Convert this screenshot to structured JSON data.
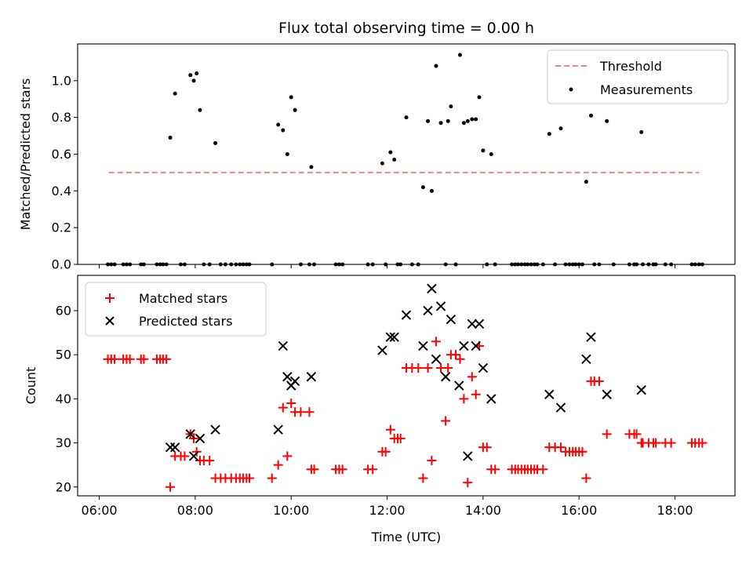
{
  "chart_data": [
    {
      "type": "scatter",
      "title": "Flux total observing time = 0.00 h",
      "xlabel": "",
      "ylabel": "Matched/Predicted stars",
      "xlim": [
        5.55,
        19.25
      ],
      "ylim": [
        0,
        1.2
      ],
      "yticks": [
        0.0,
        0.2,
        0.4,
        0.6,
        0.8,
        1.0
      ],
      "ytick_labels": [
        "0.0",
        "0.2",
        "0.4",
        "0.6",
        "0.8",
        "1.0"
      ],
      "xticks": [
        6,
        8,
        10,
        12,
        14,
        16,
        18
      ],
      "legend_position": "top-right",
      "threshold": {
        "name": "Threshold",
        "y": 0.5,
        "x": [
          6.2,
          18.5
        ],
        "color": "#ff7f7f",
        "style": "dashed"
      },
      "series": [
        {
          "name": "Measurements",
          "color": "#000000",
          "marker": "dot",
          "points": [
            [
              6.18,
              0
            ],
            [
              6.25,
              0
            ],
            [
              6.32,
              0
            ],
            [
              6.5,
              0
            ],
            [
              6.57,
              0
            ],
            [
              6.64,
              0
            ],
            [
              6.87,
              0
            ],
            [
              6.93,
              0
            ],
            [
              7.2,
              0
            ],
            [
              7.27,
              0
            ],
            [
              7.33,
              0
            ],
            [
              7.4,
              0
            ],
            [
              7.48,
              0.69
            ],
            [
              7.58,
              0.93
            ],
            [
              7.7,
              0
            ],
            [
              7.78,
              0
            ],
            [
              7.9,
              1.03
            ],
            [
              7.97,
              1.0
            ],
            [
              8.03,
              1.04
            ],
            [
              8.1,
              0.84
            ],
            [
              8.18,
              0
            ],
            [
              8.3,
              0
            ],
            [
              8.42,
              0.66
            ],
            [
              8.53,
              0
            ],
            [
              8.63,
              0
            ],
            [
              8.75,
              0
            ],
            [
              8.85,
              0
            ],
            [
              8.93,
              0
            ],
            [
              9.0,
              0
            ],
            [
              9.07,
              0
            ],
            [
              9.13,
              0
            ],
            [
              9.6,
              0
            ],
            [
              9.73,
              0.76
            ],
            [
              9.83,
              0.73
            ],
            [
              9.92,
              0.6
            ],
            [
              10.0,
              0.91
            ],
            [
              10.08,
              0.84
            ],
            [
              10.2,
              0
            ],
            [
              10.38,
              0
            ],
            [
              10.42,
              0.53
            ],
            [
              10.48,
              0
            ],
            [
              10.93,
              0
            ],
            [
              11.0,
              0
            ],
            [
              11.07,
              0
            ],
            [
              11.6,
              0
            ],
            [
              11.7,
              0
            ],
            [
              11.9,
              0.55
            ],
            [
              11.97,
              0
            ],
            [
              12.07,
              0.61
            ],
            [
              12.15,
              0.57
            ],
            [
              12.22,
              0
            ],
            [
              12.28,
              0
            ],
            [
              12.4,
              0.8
            ],
            [
              12.52,
              0
            ],
            [
              12.65,
              0
            ],
            [
              12.75,
              0.42
            ],
            [
              12.85,
              0.78
            ],
            [
              12.93,
              0.4
            ],
            [
              13.02,
              1.08
            ],
            [
              13.12,
              0.77
            ],
            [
              13.22,
              0
            ],
            [
              13.27,
              0.78
            ],
            [
              13.33,
              0.86
            ],
            [
              13.43,
              0
            ],
            [
              13.52,
              1.14
            ],
            [
              13.6,
              0.77
            ],
            [
              13.68,
              0.78
            ],
            [
              13.77,
              0.79
            ],
            [
              13.85,
              0.79
            ],
            [
              13.92,
              0.91
            ],
            [
              14.0,
              0.62
            ],
            [
              14.08,
              0
            ],
            [
              14.17,
              0.6
            ],
            [
              14.25,
              0
            ],
            [
              14.6,
              0
            ],
            [
              14.67,
              0
            ],
            [
              14.73,
              0
            ],
            [
              14.8,
              0
            ],
            [
              14.87,
              0
            ],
            [
              14.93,
              0
            ],
            [
              15.0,
              0
            ],
            [
              15.07,
              0
            ],
            [
              15.13,
              0
            ],
            [
              15.25,
              0
            ],
            [
              15.38,
              0.71
            ],
            [
              15.5,
              0
            ],
            [
              15.62,
              0.74
            ],
            [
              15.72,
              0
            ],
            [
              15.8,
              0
            ],
            [
              15.87,
              0
            ],
            [
              15.93,
              0
            ],
            [
              16.0,
              0
            ],
            [
              16.07,
              0
            ],
            [
              16.15,
              0.45
            ],
            [
              16.25,
              0.81
            ],
            [
              16.32,
              0
            ],
            [
              16.42,
              0
            ],
            [
              16.58,
              0.78
            ],
            [
              16.72,
              0
            ],
            [
              17.05,
              0
            ],
            [
              17.15,
              0
            ],
            [
              17.2,
              0
            ],
            [
              17.3,
              0.72
            ],
            [
              17.33,
              0
            ],
            [
              17.45,
              0
            ],
            [
              17.55,
              0
            ],
            [
              17.6,
              0
            ],
            [
              17.8,
              0
            ],
            [
              17.92,
              0
            ],
            [
              18.35,
              0
            ],
            [
              18.42,
              0
            ],
            [
              18.5,
              0
            ],
            [
              18.57,
              0
            ]
          ]
        }
      ]
    },
    {
      "type": "scatter",
      "title": "",
      "xlabel": "Time (UTC)",
      "ylabel": "Count",
      "xlim": [
        5.55,
        19.25
      ],
      "ylim": [
        18,
        68
      ],
      "yticks": [
        20,
        30,
        40,
        50,
        60
      ],
      "ytick_labels": [
        "20",
        "30",
        "40",
        "50",
        "60"
      ],
      "xticks": [
        6,
        8,
        10,
        12,
        14,
        16,
        18
      ],
      "xtick_labels": [
        "06:00",
        "08:00",
        "10:00",
        "12:00",
        "14:00",
        "16:00",
        "18:00"
      ],
      "legend_position": "top-left",
      "series": [
        {
          "name": "Matched stars",
          "color": "#ff0000",
          "marker": "plus",
          "points": [
            [
              6.18,
              49
            ],
            [
              6.25,
              49
            ],
            [
              6.32,
              49
            ],
            [
              6.5,
              49
            ],
            [
              6.57,
              49
            ],
            [
              6.64,
              49
            ],
            [
              6.87,
              49
            ],
            [
              6.93,
              49
            ],
            [
              7.2,
              49
            ],
            [
              7.27,
              49
            ],
            [
              7.33,
              49
            ],
            [
              7.4,
              49
            ],
            [
              7.48,
              20
            ],
            [
              7.58,
              27
            ],
            [
              7.7,
              27
            ],
            [
              7.78,
              27
            ],
            [
              7.9,
              32
            ],
            [
              7.97,
              31
            ],
            [
              8.03,
              28
            ],
            [
              8.1,
              26
            ],
            [
              8.18,
              26
            ],
            [
              8.3,
              26
            ],
            [
              8.42,
              22
            ],
            [
              8.53,
              22
            ],
            [
              8.63,
              22
            ],
            [
              8.75,
              22
            ],
            [
              8.85,
              22
            ],
            [
              8.93,
              22
            ],
            [
              9.0,
              22
            ],
            [
              9.07,
              22
            ],
            [
              9.13,
              22
            ],
            [
              9.6,
              22
            ],
            [
              9.73,
              25
            ],
            [
              9.83,
              38
            ],
            [
              9.92,
              27
            ],
            [
              10.0,
              39
            ],
            [
              10.08,
              37
            ],
            [
              10.2,
              37
            ],
            [
              10.38,
              37
            ],
            [
              10.42,
              24
            ],
            [
              10.48,
              24
            ],
            [
              10.93,
              24
            ],
            [
              11.0,
              24
            ],
            [
              11.07,
              24
            ],
            [
              11.6,
              24
            ],
            [
              11.7,
              24
            ],
            [
              11.9,
              28
            ],
            [
              11.97,
              28
            ],
            [
              12.07,
              33
            ],
            [
              12.15,
              31
            ],
            [
              12.22,
              31
            ],
            [
              12.28,
              31
            ],
            [
              12.4,
              47
            ],
            [
              12.52,
              47
            ],
            [
              12.65,
              47
            ],
            [
              12.75,
              22
            ],
            [
              12.85,
              47
            ],
            [
              12.93,
              26
            ],
            [
              13.02,
              53
            ],
            [
              13.12,
              47
            ],
            [
              13.22,
              35
            ],
            [
              13.27,
              47
            ],
            [
              13.33,
              50
            ],
            [
              13.43,
              50
            ],
            [
              13.52,
              49
            ],
            [
              13.6,
              40
            ],
            [
              13.68,
              21
            ],
            [
              13.77,
              45
            ],
            [
              13.85,
              41
            ],
            [
              13.92,
              52
            ],
            [
              14.0,
              29
            ],
            [
              14.08,
              29
            ],
            [
              14.17,
              24
            ],
            [
              14.25,
              24
            ],
            [
              14.6,
              24
            ],
            [
              14.67,
              24
            ],
            [
              14.73,
              24
            ],
            [
              14.8,
              24
            ],
            [
              14.87,
              24
            ],
            [
              14.93,
              24
            ],
            [
              15.0,
              24
            ],
            [
              15.07,
              24
            ],
            [
              15.13,
              24
            ],
            [
              15.25,
              24
            ],
            [
              15.38,
              29
            ],
            [
              15.5,
              29
            ],
            [
              15.62,
              29
            ],
            [
              15.72,
              28
            ],
            [
              15.8,
              28
            ],
            [
              15.87,
              28
            ],
            [
              15.93,
              28
            ],
            [
              16.0,
              28
            ],
            [
              16.07,
              28
            ],
            [
              16.15,
              22
            ],
            [
              16.25,
              44
            ],
            [
              16.32,
              44
            ],
            [
              16.42,
              44
            ],
            [
              16.58,
              32
            ],
            [
              17.05,
              32
            ],
            [
              17.15,
              32
            ],
            [
              17.2,
              32
            ],
            [
              17.3,
              30
            ],
            [
              17.33,
              30
            ],
            [
              17.45,
              30
            ],
            [
              17.55,
              30
            ],
            [
              17.6,
              30
            ],
            [
              17.8,
              30
            ],
            [
              17.92,
              30
            ],
            [
              18.35,
              30
            ],
            [
              18.42,
              30
            ],
            [
              18.5,
              30
            ],
            [
              18.57,
              30
            ]
          ]
        },
        {
          "name": "Predicted stars",
          "color": "#000000",
          "marker": "x",
          "points": [
            [
              7.48,
              29
            ],
            [
              7.58,
              29
            ],
            [
              7.9,
              32
            ],
            [
              7.97,
              27
            ],
            [
              8.1,
              31
            ],
            [
              8.42,
              33
            ],
            [
              9.73,
              33
            ],
            [
              9.83,
              52
            ],
            [
              9.92,
              45
            ],
            [
              10.0,
              43
            ],
            [
              10.08,
              44
            ],
            [
              10.42,
              45
            ],
            [
              11.9,
              51
            ],
            [
              12.07,
              54
            ],
            [
              12.15,
              54
            ],
            [
              12.4,
              59
            ],
            [
              12.75,
              52
            ],
            [
              12.85,
              60
            ],
            [
              12.93,
              65
            ],
            [
              13.02,
              49
            ],
            [
              13.12,
              61
            ],
            [
              13.22,
              45
            ],
            [
              13.33,
              58
            ],
            [
              13.5,
              43
            ],
            [
              13.6,
              52
            ],
            [
              13.68,
              27
            ],
            [
              13.77,
              57
            ],
            [
              13.85,
              52
            ],
            [
              13.92,
              57
            ],
            [
              14.0,
              47
            ],
            [
              14.17,
              40
            ],
            [
              15.38,
              41
            ],
            [
              15.62,
              38
            ],
            [
              16.15,
              49
            ],
            [
              16.25,
              54
            ],
            [
              16.58,
              41
            ],
            [
              17.3,
              42
            ]
          ]
        }
      ]
    }
  ]
}
